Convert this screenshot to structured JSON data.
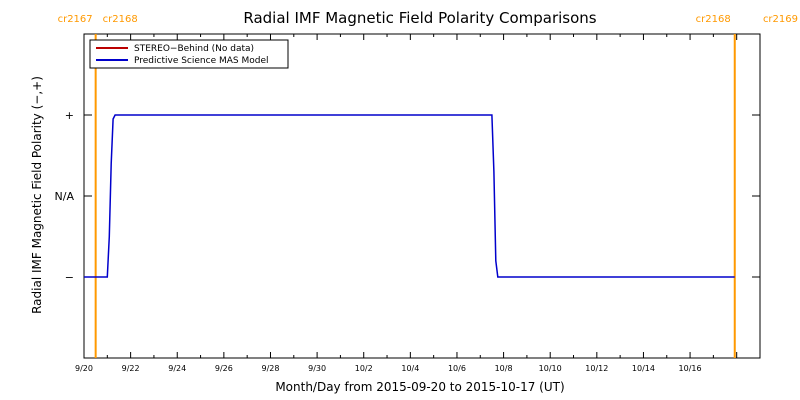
{
  "chart_data": {
    "type": "line",
    "title": "Radial IMF Magnetic Field Polarity Comparisons",
    "xlabel": "Month/Day from 2015-09-20 to 2015-10-17 (UT)",
    "ylabel": "Radial IMF Magnetic Field Polarity (−,+)",
    "x_range": [
      "2015-09-20",
      "2015-10-19"
    ],
    "x_ticks": [
      {
        "date": "2015-09-20",
        "label": "9/20"
      },
      {
        "date": "2015-09-22",
        "label": "9/22"
      },
      {
        "date": "2015-09-24",
        "label": "9/24"
      },
      {
        "date": "2015-09-26",
        "label": "9/26"
      },
      {
        "date": "2015-09-28",
        "label": "9/28"
      },
      {
        "date": "2015-09-30",
        "label": "9/30"
      },
      {
        "date": "2015-10-02",
        "label": "10/2"
      },
      {
        "date": "2015-10-04",
        "label": "10/4"
      },
      {
        "date": "2015-10-06",
        "label": "10/6"
      },
      {
        "date": "2015-10-08",
        "label": "10/8"
      },
      {
        "date": "2015-10-10",
        "label": "10/10"
      },
      {
        "date": "2015-10-12",
        "label": "10/12"
      },
      {
        "date": "2015-10-14",
        "label": "10/14"
      },
      {
        "date": "2015-10-16",
        "label": "10/16"
      }
    ],
    "y_levels": [
      {
        "value": 1,
        "label": "+"
      },
      {
        "value": 0,
        "label": "N/A"
      },
      {
        "value": -1,
        "label": "−"
      }
    ],
    "y_range": [
      -2,
      2
    ],
    "carrington_markers": [
      {
        "date": "2015-09-20 12:00",
        "left_label": "cr2167",
        "right_label": "cr2168",
        "color": "#ff9900"
      },
      {
        "date": "2015-10-17 22:00",
        "left_label": "cr2168",
        "right_label": "cr2169",
        "color": "#ff9900"
      }
    ],
    "series": [
      {
        "name": "STEREO−Behind (No data)",
        "color": "#bb0000",
        "points": []
      },
      {
        "name": "Predictive Science MAS Model",
        "color": "#0000cc",
        "points": [
          {
            "x": "2015-09-20 00:00",
            "y": -1
          },
          {
            "x": "2015-09-21 00:00",
            "y": -1
          },
          {
            "x": "2015-09-21 02:00",
            "y": -0.5
          },
          {
            "x": "2015-09-21 04:00",
            "y": 0.4
          },
          {
            "x": "2015-09-21 06:00",
            "y": 0.95
          },
          {
            "x": "2015-09-21 08:00",
            "y": 1
          },
          {
            "x": "2015-10-07 12:00",
            "y": 1
          },
          {
            "x": "2015-10-07 14:00",
            "y": 0.3
          },
          {
            "x": "2015-10-07 16:00",
            "y": -0.8
          },
          {
            "x": "2015-10-07 18:00",
            "y": -1
          },
          {
            "x": "2015-10-17 22:00",
            "y": -1
          }
        ]
      }
    ],
    "legend_position": "top-left",
    "grid": false
  }
}
